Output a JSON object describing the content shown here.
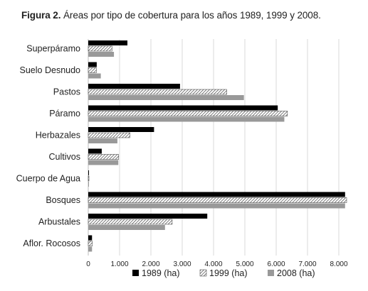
{
  "figure": {
    "label": "Figura 2.",
    "caption": " Áreas por tipo de cobertura para los años 1989, 1999 y 2008."
  },
  "chart_data": {
    "type": "bar",
    "orientation": "horizontal",
    "categories": [
      "Superpáramo",
      "Suelo Desnudo",
      "Pastos",
      "Páramo",
      "Herbazales",
      "Cultivos",
      "Cuerpo de Agua",
      "Bosques",
      "Arbustales",
      "Aflor. Rocosos"
    ],
    "series": [
      {
        "name": "1989 (ha)",
        "color": "#000000",
        "pattern": "solid",
        "values": [
          1250,
          270,
          2930,
          6050,
          2100,
          430,
          15,
          8200,
          3800,
          120
        ]
      },
      {
        "name": "1999 (ha)",
        "color": "#555555",
        "pattern": "hatch",
        "values": [
          760,
          260,
          4420,
          6360,
          1330,
          970,
          15,
          8250,
          2680,
          130
        ]
      },
      {
        "name": "2008 (ha)",
        "color": "#999999",
        "pattern": "solid",
        "values": [
          820,
          400,
          4970,
          6260,
          930,
          960,
          15,
          8200,
          2450,
          120
        ]
      }
    ],
    "xlim": [
      0,
      8500
    ],
    "xticks": [
      0,
      1000,
      2000,
      3000,
      4000,
      5000,
      6000,
      7000,
      8000
    ],
    "xtick_labels": [
      "0",
      "1.000",
      "2.000",
      "3.000",
      "4.000",
      "5.000",
      "6.000",
      "7.000",
      "8.000"
    ],
    "grid": "vertical",
    "legend": "bottom"
  }
}
